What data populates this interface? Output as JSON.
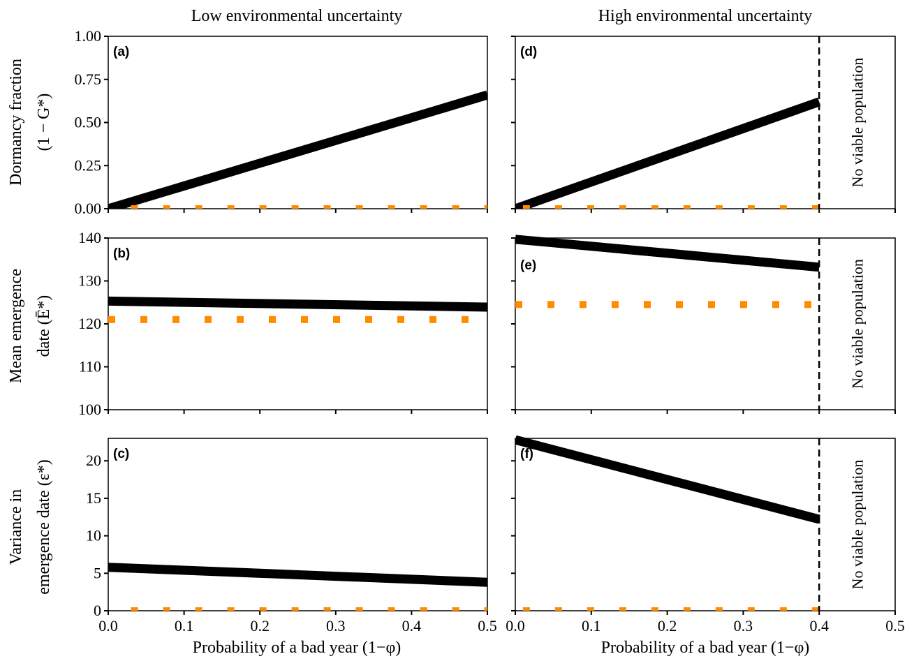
{
  "columns": [
    "Low environmental uncertainty",
    "High environmental uncertainty"
  ],
  "row_ylabels": [
    [
      "Dormancy fraction",
      "(1 − G*)"
    ],
    [
      "Mean emergence",
      "date (Ē*)"
    ],
    [
      "Variance in",
      "emergence date (ε*)"
    ]
  ],
  "xlabel": "Probability of a bad year (1−φ)",
  "no_viable_label": "No viable population",
  "colors": {
    "optimal": "#000000",
    "reference": "#FF8C00"
  },
  "chart_data": [
    {
      "id": "a",
      "panel_label": "(a)",
      "type": "line",
      "xlim": [
        0,
        0.5
      ],
      "ylim": [
        0,
        1
      ],
      "xticks": [
        "0.0",
        "0.1",
        "0.2",
        "0.3",
        "0.4",
        "0.5"
      ],
      "yticks": [
        "0.00",
        "0.25",
        "0.50",
        "0.75",
        "1.00"
      ],
      "show_xtick_labels": false,
      "show_ytick_labels": true,
      "series": [
        {
          "role": "optimal",
          "x": [
            0,
            0.5
          ],
          "y": [
            0.0,
            0.66
          ]
        },
        {
          "role": "reference",
          "x": [
            0.03,
            0.5
          ],
          "y": [
            0.0,
            0.0
          ]
        }
      ]
    },
    {
      "id": "b",
      "panel_label": "(b)",
      "type": "line",
      "xlim": [
        0,
        0.5
      ],
      "ylim": [
        100,
        140
      ],
      "xticks": [
        "0.0",
        "0.1",
        "0.2",
        "0.3",
        "0.4",
        "0.5"
      ],
      "yticks": [
        "100",
        "110",
        "120",
        "130",
        "140"
      ],
      "show_xtick_labels": false,
      "show_ytick_labels": true,
      "series": [
        {
          "role": "optimal",
          "x": [
            0,
            0.5
          ],
          "y": [
            125.3,
            123.9
          ]
        },
        {
          "role": "reference",
          "x": [
            0.0,
            0.5
          ],
          "y": [
            121.0,
            121.0
          ]
        }
      ]
    },
    {
      "id": "c",
      "panel_label": "(c)",
      "type": "line",
      "xlim": [
        0,
        0.5
      ],
      "ylim": [
        0,
        23
      ],
      "xticks": [
        "0.0",
        "0.1",
        "0.2",
        "0.3",
        "0.4",
        "0.5"
      ],
      "yticks": [
        "0",
        "5",
        "10",
        "15",
        "20"
      ],
      "show_xtick_labels": true,
      "show_ytick_labels": true,
      "series": [
        {
          "role": "optimal",
          "x": [
            0,
            0.5
          ],
          "y": [
            5.8,
            3.8
          ]
        },
        {
          "role": "reference",
          "x": [
            0.03,
            0.5
          ],
          "y": [
            0.0,
            0.0
          ]
        }
      ]
    },
    {
      "id": "d",
      "panel_label": "(d)",
      "type": "line",
      "xlim": [
        0,
        0.5
      ],
      "ylim": [
        0,
        1
      ],
      "xticks": [
        "0.0",
        "0.1",
        "0.2",
        "0.3",
        "0.4",
        "0.5"
      ],
      "yticks": [
        "0.00",
        "0.25",
        "0.50",
        "0.75",
        "1.00"
      ],
      "show_xtick_labels": false,
      "show_ytick_labels": false,
      "cutoff_x": 0.4,
      "series": [
        {
          "role": "optimal",
          "x": [
            0,
            0.4
          ],
          "y": [
            0.0,
            0.62
          ]
        },
        {
          "role": "reference",
          "x": [
            0.01,
            0.4
          ],
          "y": [
            0.0,
            0.0
          ]
        }
      ]
    },
    {
      "id": "e",
      "panel_label": "(e)",
      "type": "line",
      "xlim": [
        0,
        0.5
      ],
      "ylim": [
        100,
        140
      ],
      "xticks": [
        "0.0",
        "0.1",
        "0.2",
        "0.3",
        "0.4",
        "0.5"
      ],
      "yticks": [
        "100",
        "110",
        "120",
        "130",
        "140"
      ],
      "show_xtick_labels": false,
      "show_ytick_labels": false,
      "cutoff_x": 0.4,
      "series": [
        {
          "role": "optimal",
          "x": [
            0,
            0.4
          ],
          "y": [
            139.7,
            133.2
          ]
        },
        {
          "role": "reference",
          "x": [
            0.0,
            0.4
          ],
          "y": [
            124.5,
            124.5
          ]
        }
      ]
    },
    {
      "id": "f",
      "panel_label": "(f)",
      "type": "line",
      "xlim": [
        0,
        0.5
      ],
      "ylim": [
        0,
        23
      ],
      "xticks": [
        "0.0",
        "0.1",
        "0.2",
        "0.3",
        "0.4",
        "0.5"
      ],
      "yticks": [
        "0",
        "5",
        "10",
        "15",
        "20"
      ],
      "show_xtick_labels": true,
      "show_ytick_labels": false,
      "cutoff_x": 0.4,
      "series": [
        {
          "role": "optimal",
          "x": [
            0,
            0.4
          ],
          "y": [
            22.8,
            12.2
          ]
        },
        {
          "role": "reference",
          "x": [
            0.01,
            0.4
          ],
          "y": [
            0.0,
            0.0
          ]
        }
      ]
    }
  ]
}
